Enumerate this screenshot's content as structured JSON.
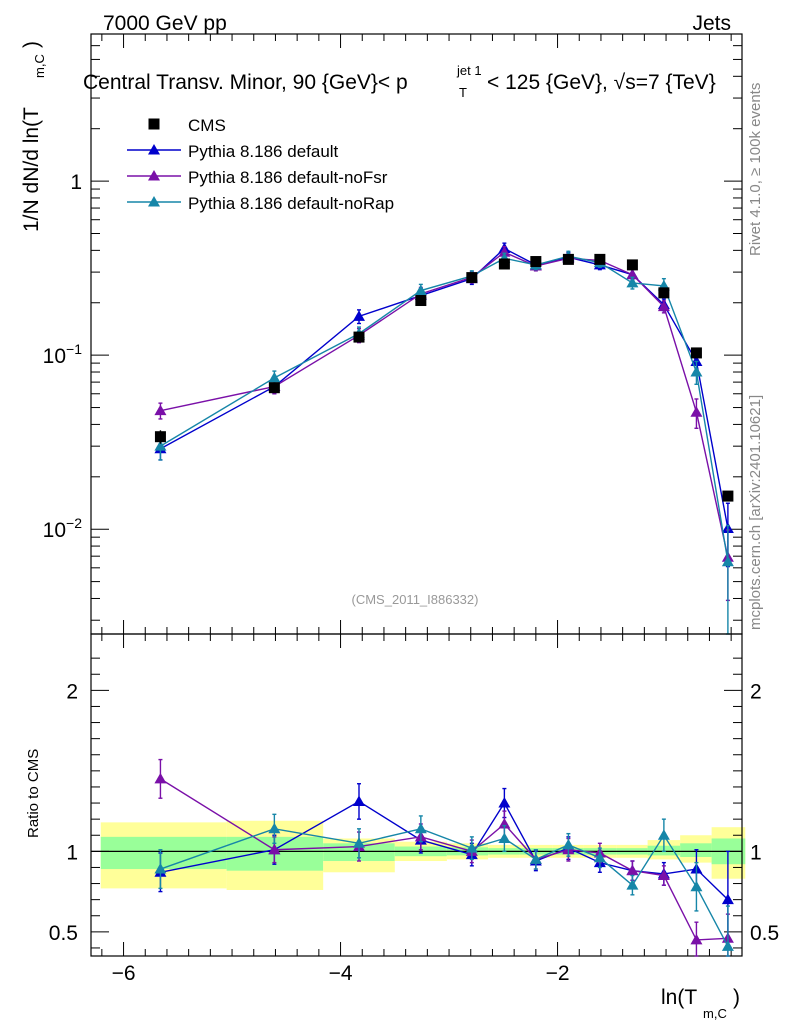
{
  "header": {
    "left": "7000 GeV pp",
    "right": "Jets"
  },
  "title": {
    "prefix": "Central Transv. Minor, 90 {GeV}< p",
    "sup": "jet 1",
    "sub": "T",
    "mid": "< 125 {GeV}, √s=7 {TeV}"
  },
  "side_text": {
    "rivet": "Rivet 4.1.0, ≥ 100k events",
    "mcplots": "mcplots.cern.ch [arXiv:2401.10621]"
  },
  "ylabel": {
    "main": "1/N   dN/d ln(T",
    "sub": "m,C",
    "close": ")"
  },
  "xlabel": {
    "main": "ln(T",
    "sub": "m,C",
    "close": ")"
  },
  "watermark": "(CMS_2011_I886332)",
  "ratio_ylabel": "Ratio to CMS",
  "colors": {
    "cms": "#000000",
    "default": "#0000cc",
    "noFsr": "#7a10a8",
    "noRap": "#1686a8",
    "band_outer": "#ffff99",
    "band_inner": "#99ff99"
  },
  "chart_data": [
    {
      "type": "scatter",
      "panel": "main",
      "xlabel": "ln(T_m,C)",
      "ylabel": "1/N dN/d ln(T_m,C)",
      "yscale": "log",
      "xlim": [
        -6.3,
        -0.3
      ],
      "ylim": [
        0.0025,
        7
      ],
      "y_ticks": [
        {
          "v": 1,
          "label": "1"
        },
        {
          "v": 0.1,
          "label": "10^-1"
        },
        {
          "v": 0.01,
          "label": "10^-2"
        }
      ],
      "x": [
        -5.66,
        -4.61,
        -3.83,
        -3.26,
        -2.79,
        -2.49,
        -2.2,
        -1.9,
        -1.61,
        -1.31,
        -1.02,
        -0.72,
        -0.43
      ],
      "legend": [
        "CMS",
        "Pythia 8.186 default",
        "Pythia 8.186 default-noFsr",
        "Pythia 8.186 default-noRap"
      ],
      "series": [
        {
          "name": "CMS",
          "key": "cms",
          "marker": "square",
          "values": [
            0.034,
            0.065,
            0.127,
            0.206,
            0.279,
            0.334,
            0.345,
            0.355,
            0.355,
            0.33,
            0.228,
            0.103,
            0.0155
          ],
          "errors": [
            0.003,
            0.004,
            0.006,
            0.008,
            0.01,
            0.012,
            0.012,
            0.012,
            0.012,
            0.011,
            0.009,
            0.005,
            0.001
          ]
        },
        {
          "name": "Pythia 8.186 default",
          "key": "default",
          "marker": "triangle",
          "values": [
            0.029,
            0.066,
            0.167,
            0.22,
            0.275,
            0.41,
            0.33,
            0.365,
            0.33,
            0.29,
            0.195,
            0.092,
            0.0101
          ],
          "errors": [
            0.004,
            0.006,
            0.015,
            0.02,
            0.02,
            0.03,
            0.02,
            0.025,
            0.02,
            0.02,
            0.015,
            0.012,
            0.004
          ]
        },
        {
          "name": "Pythia 8.186 default-noFsr",
          "key": "noFsr",
          "marker": "triangle",
          "values": [
            0.048,
            0.066,
            0.13,
            0.225,
            0.28,
            0.39,
            0.325,
            0.36,
            0.35,
            0.29,
            0.19,
            0.047,
            0.0069
          ],
          "errors": [
            0.005,
            0.006,
            0.012,
            0.02,
            0.02,
            0.03,
            0.02,
            0.025,
            0.02,
            0.02,
            0.015,
            0.009,
            0.003
          ]
        },
        {
          "name": "Pythia 8.186 default-noRap",
          "key": "noRap",
          "marker": "triangle",
          "values": [
            0.03,
            0.074,
            0.133,
            0.235,
            0.285,
            0.36,
            0.33,
            0.37,
            0.34,
            0.26,
            0.25,
            0.08,
            0.0065
          ],
          "errors": [
            0.005,
            0.007,
            0.012,
            0.02,
            0.02,
            0.025,
            0.02,
            0.025,
            0.02,
            0.02,
            0.025,
            0.012,
            0.004
          ]
        }
      ]
    },
    {
      "type": "scatter",
      "panel": "ratio",
      "xlabel": "ln(T_m,C)",
      "ylabel": "Ratio to CMS",
      "xlim": [
        -6.3,
        -0.3
      ],
      "ylim": [
        0.35,
        2.35
      ],
      "y_ticks": [
        {
          "v": 0.5,
          "label": "0.5"
        },
        {
          "v": 1,
          "label": "1"
        },
        {
          "v": 2,
          "label": "2"
        }
      ],
      "x_ticks": [
        {
          "v": -6,
          "label": "−6"
        },
        {
          "v": -4,
          "label": "−4"
        },
        {
          "v": -2,
          "label": "−2"
        }
      ],
      "x": [
        -5.66,
        -4.61,
        -3.83,
        -3.26,
        -2.79,
        -2.49,
        -2.2,
        -1.9,
        -1.61,
        -1.31,
        -1.02,
        -0.72,
        -0.43
      ],
      "bands": [
        {
          "x0": -6.21,
          "x1": -5.05,
          "outer": [
            0.77,
            1.18
          ],
          "inner": [
            0.89,
            1.09
          ]
        },
        {
          "x0": -5.05,
          "x1": -4.16,
          "outer": [
            0.76,
            1.19
          ],
          "inner": [
            0.88,
            1.09
          ]
        },
        {
          "x0": -4.16,
          "x1": -3.5,
          "outer": [
            0.87,
            1.08
          ],
          "inner": [
            0.94,
            1.05
          ]
        },
        {
          "x0": -3.5,
          "x1": -3.02,
          "outer": [
            0.94,
            1.06
          ],
          "inner": [
            0.97,
            1.03
          ]
        },
        {
          "x0": -3.02,
          "x1": -2.64,
          "outer": [
            0.95,
            1.05
          ],
          "inner": [
            0.975,
            1.025
          ]
        },
        {
          "x0": -2.64,
          "x1": -2.35,
          "outer": [
            0.96,
            1.04
          ],
          "inner": [
            0.98,
            1.02
          ]
        },
        {
          "x0": -2.35,
          "x1": -2.05,
          "outer": [
            0.96,
            1.04
          ],
          "inner": [
            0.98,
            1.02
          ]
        },
        {
          "x0": -2.05,
          "x1": -1.76,
          "outer": [
            0.96,
            1.04
          ],
          "inner": [
            0.98,
            1.02
          ]
        },
        {
          "x0": -1.76,
          "x1": -1.46,
          "outer": [
            0.96,
            1.04
          ],
          "inner": [
            0.98,
            1.02
          ]
        },
        {
          "x0": -1.46,
          "x1": -1.17,
          "outer": [
            0.96,
            1.04
          ],
          "inner": [
            0.98,
            1.02
          ]
        },
        {
          "x0": -1.17,
          "x1": -0.87,
          "outer": [
            0.95,
            1.07
          ],
          "inner": [
            0.975,
            1.035
          ]
        },
        {
          "x0": -0.87,
          "x1": -0.58,
          "outer": [
            0.93,
            1.1
          ],
          "inner": [
            0.965,
            1.05
          ]
        },
        {
          "x0": -0.58,
          "x1": -0.27,
          "outer": [
            0.83,
            1.15
          ],
          "inner": [
            0.92,
            1.08
          ]
        }
      ],
      "series": [
        {
          "name": "Pythia 8.186 default",
          "key": "default",
          "values": [
            0.87,
            1.01,
            1.31,
            1.07,
            0.98,
            1.3,
            0.94,
            1.02,
            0.93,
            0.88,
            0.86,
            0.89,
            0.7
          ],
          "errors": [
            0.12,
            0.09,
            0.11,
            0.08,
            0.07,
            0.09,
            0.06,
            0.07,
            0.06,
            0.06,
            0.07,
            0.12,
            0.3
          ]
        },
        {
          "name": "Pythia 8.186 default-noFsr",
          "key": "noFsr",
          "values": [
            1.45,
            1.01,
            1.03,
            1.09,
            1.0,
            1.17,
            0.95,
            1.01,
            0.99,
            0.88,
            0.85,
            0.45,
            0.46
          ],
          "errors": [
            0.12,
            0.08,
            0.09,
            0.08,
            0.07,
            0.08,
            0.06,
            0.07,
            0.06,
            0.06,
            0.06,
            0.11,
            0.15
          ]
        },
        {
          "name": "Pythia 8.186 default-noRap",
          "key": "noRap",
          "values": [
            0.89,
            1.14,
            1.05,
            1.14,
            1.02,
            1.08,
            0.95,
            1.04,
            0.96,
            0.79,
            1.1,
            0.78,
            0.41
          ],
          "errors": [
            0.12,
            0.09,
            0.09,
            0.08,
            0.07,
            0.08,
            0.06,
            0.07,
            0.06,
            0.06,
            0.1,
            0.15,
            0.25
          ]
        }
      ]
    }
  ]
}
